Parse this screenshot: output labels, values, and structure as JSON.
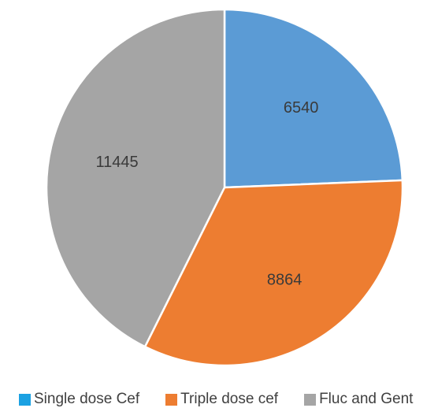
{
  "chart_data": {
    "type": "pie",
    "categories": [
      "Single dose Cef",
      "Triple dose cef",
      "Fluc and Gent"
    ],
    "values": [
      6540,
      8864,
      11445
    ],
    "colors": [
      "#5b9bd5",
      "#ed7d31",
      "#a5a5a5"
    ],
    "legend_swatch_colors": [
      "#1ba1e2",
      "#ed7d31",
      "#a5a5a5"
    ],
    "start_angle": "12 o'clock",
    "direction": "clockwise",
    "legend_position": "bottom",
    "title": ""
  }
}
